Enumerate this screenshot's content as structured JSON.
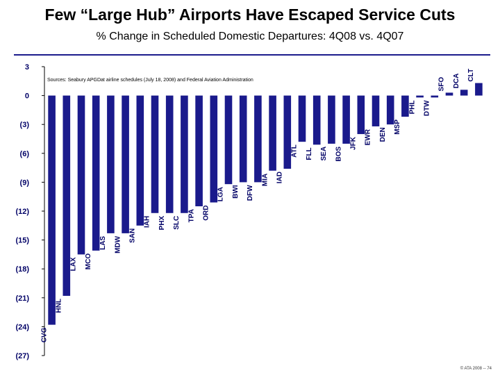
{
  "title": "Few “Large Hub” Airports Have Escaped Service Cuts",
  "subtitle": "% Change in Scheduled Domestic Departures: 4Q08 vs. 4Q07",
  "source_note": "Sources: Seabury APGDat airline schedules (July 18, 2008) and Federal Aviation Administration",
  "footer": "© ATA 2008 -- 74",
  "colors": {
    "bar": "#1a1a8c",
    "tick_text": "#000066",
    "accent": "#1a1a8c"
  },
  "chart_data": {
    "type": "bar",
    "title": "% Change in Scheduled Domestic Departures: 4Q08 vs. 4Q07",
    "xlabel": "",
    "ylabel": "",
    "ylim": [
      -27,
      3
    ],
    "yticks": [
      3,
      0,
      -3,
      -6,
      -9,
      -12,
      -15,
      -18,
      -21,
      -24,
      -27
    ],
    "ytick_labels": [
      "3",
      "0",
      "(3)",
      "(6)",
      "(9)",
      "(12)",
      "(15)",
      "(18)",
      "(21)",
      "(24)",
      "(27)"
    ],
    "grid": false,
    "categories": [
      "CVG",
      "HNL",
      "LAX",
      "MCO",
      "LAS",
      "MDW",
      "SAN",
      "IAH",
      "PHX",
      "SLC",
      "TPA",
      "ORD",
      "LGA",
      "BWI",
      "DFW",
      "MIA",
      "IAD",
      "ATL",
      "FLL",
      "SEA",
      "BOS",
      "JFK",
      "EWR",
      "DEN",
      "MSP",
      "PHL",
      "DTW",
      "SFO",
      "DCA",
      "CLT"
    ],
    "values": [
      -23.8,
      -20.8,
      -16.5,
      -16.1,
      -14.3,
      -14.3,
      -13.5,
      -12.2,
      -12.2,
      -12.2,
      -11.5,
      -11.1,
      -9.2,
      -9.0,
      -9.0,
      -7.8,
      -7.6,
      -4.8,
      -5.1,
      -5.0,
      -5.0,
      -4.0,
      -3.2,
      -3.0,
      -2.2,
      -0.2,
      -0.2,
      0.3,
      0.6,
      1.3
    ]
  }
}
